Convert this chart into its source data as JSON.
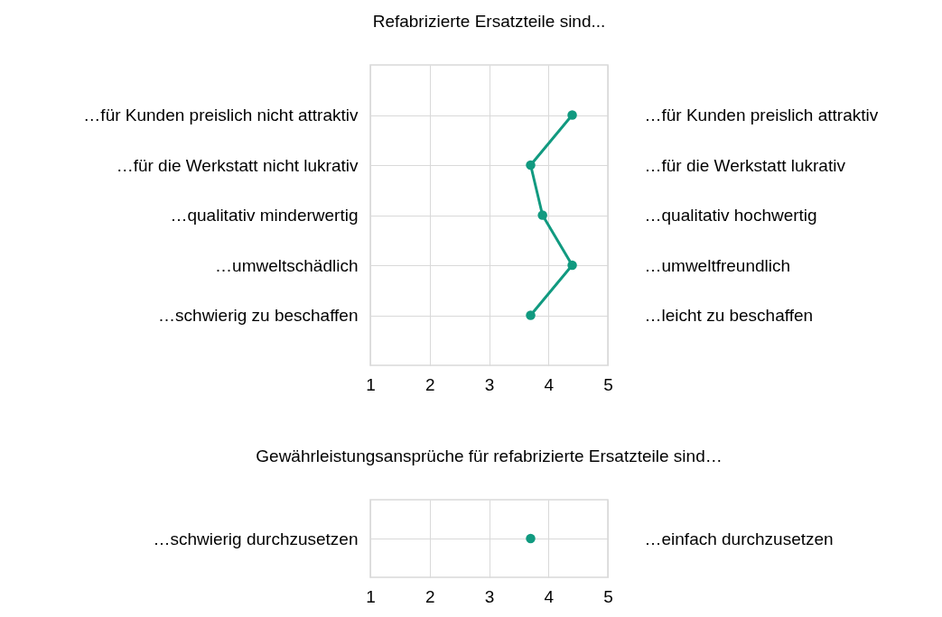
{
  "chart_data": [
    {
      "type": "line",
      "orientation": "horizontal",
      "title": "Refabrizierte Ersatzteile sind...",
      "categories": [
        "…für Kunden preislich nicht attraktiv",
        "…für die Werkstatt nicht lukrativ",
        "…qualitativ minderwertig",
        "…umweltschädlich",
        "…schwierig zu beschaffen"
      ],
      "y2_categories": [
        "…für Kunden preislich attraktiv",
        "…für die Werkstatt lukrativ",
        "…qualitativ hochwertig",
        "…umweltfreundlich",
        "…leicht zu beschaffen"
      ],
      "values": [
        4.4,
        3.7,
        3.9,
        4.4,
        3.7
      ],
      "color": "#119a80",
      "xlim": [
        1,
        5
      ],
      "xticks": [
        1,
        2,
        3,
        4,
        5
      ],
      "grid": true,
      "marker": "circle"
    },
    {
      "type": "scatter",
      "orientation": "horizontal",
      "title": "Gewährleistungsansprüche für refabrizierte Ersatzteile sind…",
      "categories": [
        "…schwierig durchzusetzen"
      ],
      "y2_categories": [
        "…einfach durchzusetzen"
      ],
      "values": [
        3.7
      ],
      "color": "#119a80",
      "xlim": [
        1,
        5
      ],
      "xticks": [
        1,
        2,
        3,
        4,
        5
      ],
      "grid": true,
      "marker": "circle"
    }
  ]
}
